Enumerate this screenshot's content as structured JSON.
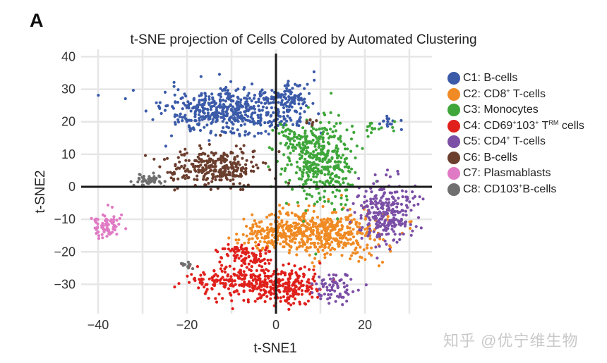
{
  "panel_letter": "A",
  "watermark": "知乎 @优宁维生物",
  "chart_data": {
    "type": "scatter",
    "title": "t-SNE projection of Cells Colored by Automated Clustering",
    "xlabel": "t-SNE1",
    "ylabel": "t-SNE2",
    "xlim": [
      -42,
      32
    ],
    "ylim": [
      -38,
      42
    ],
    "x_ticks": [
      -40,
      -20,
      0,
      20
    ],
    "y_ticks": [
      40,
      30,
      20,
      10,
      0,
      -10,
      -20,
      -30
    ],
    "grid": true,
    "legend_position": "right",
    "series": [
      {
        "name": "C1: B-cells",
        "label_parts": [
          "C1: B-cells"
        ],
        "color": "#3b5ba9",
        "regions": [
          {
            "cx": -10,
            "cy": 23,
            "sx": 7.5,
            "sy": 3.5,
            "n": 520
          },
          {
            "cx": 3,
            "cy": 28,
            "sx": 2.5,
            "sy": 2.5,
            "n": 80
          },
          {
            "cx": 26,
            "cy": 20,
            "sx": 1.2,
            "sy": 1.0,
            "n": 15
          }
        ]
      },
      {
        "name": "C2: CD8+ T-cells",
        "label_parts": [
          "C2: CD8",
          "+",
          " T-cells"
        ],
        "color": "#f08a24",
        "regions": [
          {
            "cx": 10,
            "cy": -14,
            "sx": 6.5,
            "sy": 3.6,
            "n": 520
          },
          {
            "cx": -2,
            "cy": -14,
            "sx": 3.5,
            "sy": 2.5,
            "n": 90
          }
        ]
      },
      {
        "name": "C3: Monocytes",
        "label_parts": [
          "C3: Monocytes"
        ],
        "color": "#3ea63a",
        "regions": [
          {
            "cx": 10,
            "cy": 8,
            "sx": 3.8,
            "sy": 7.0,
            "n": 380
          },
          {
            "cx": 4,
            "cy": 14,
            "sx": 2.5,
            "sy": 3.0,
            "n": 60
          },
          {
            "cx": 22,
            "cy": 18,
            "sx": 3.0,
            "sy": 1.0,
            "n": 15
          }
        ]
      },
      {
        "name": "C4: CD69+103+ TRM cells",
        "label_parts": [
          "C4: CD69",
          "+",
          "103",
          "+",
          " T",
          "RM",
          " cells"
        ],
        "color": "#e0201c",
        "regions": [
          {
            "cx": -5,
            "cy": -29,
            "sx": 6.0,
            "sy": 3.0,
            "n": 250
          },
          {
            "cx": 3,
            "cy": -31,
            "sx": 3.0,
            "sy": 2.5,
            "n": 140
          },
          {
            "cx": -9,
            "cy": -20,
            "sx": 2.0,
            "sy": 1.5,
            "n": 45
          },
          {
            "cx": -4,
            "cy": -22,
            "sx": 2.0,
            "sy": 2.0,
            "n": 45
          },
          {
            "cx": -15,
            "cy": -29,
            "sx": 2.5,
            "sy": 1.0,
            "n": 30
          }
        ]
      },
      {
        "name": "C5: CD4+ T-cells",
        "label_parts": [
          "C5: CD4",
          "+",
          " T-cells"
        ],
        "color": "#7b4fa6",
        "regions": [
          {
            "cx": 25,
            "cy": -8,
            "sx": 3.5,
            "sy": 4.5,
            "n": 260
          },
          {
            "cx": 13,
            "cy": -31,
            "sx": 2.5,
            "sy": 2.5,
            "n": 70
          }
        ]
      },
      {
        "name": "C6: B-cells",
        "label_parts": [
          "C6: B-cells"
        ],
        "color": "#6b3e2e",
        "regions": [
          {
            "cx": -14,
            "cy": 6,
            "sx": 5.0,
            "sy": 2.6,
            "n": 300
          },
          {
            "cx": 8,
            "cy": 20,
            "sx": 1.0,
            "sy": 0.8,
            "n": 8
          }
        ]
      },
      {
        "name": "C7: Plasmablasts",
        "label_parts": [
          "C7: Plasmablasts"
        ],
        "color": "#e07ac4",
        "regions": [
          {
            "cx": -38,
            "cy": -12,
            "sx": 1.5,
            "sy": 2.0,
            "n": 75
          }
        ]
      },
      {
        "name": "C8: CD103+B-cells",
        "label_parts": [
          "C8: CD103",
          "+",
          "B-cells"
        ],
        "color": "#6f6f6f",
        "regions": [
          {
            "cx": -29,
            "cy": 2,
            "sx": 1.5,
            "sy": 1.0,
            "n": 50
          },
          {
            "cx": -20,
            "cy": -24,
            "sx": 0.6,
            "sy": 0.7,
            "n": 12
          }
        ]
      }
    ]
  }
}
